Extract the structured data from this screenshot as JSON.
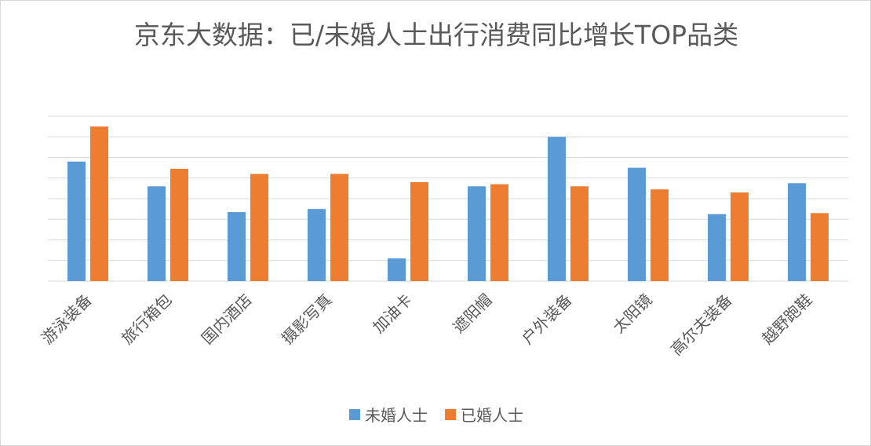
{
  "colors": {
    "unmarried": "#5B9BD5",
    "married": "#ED7D31",
    "grid": "#d9d9d9",
    "text": "#595959"
  },
  "chart_data": {
    "type": "bar",
    "title": "京东大数据：已/未婚人士出行消费同比增长TOP品类",
    "xlabel": "",
    "ylabel": "",
    "ylim": [
      0,
      8
    ],
    "y_tick_labels_shown": false,
    "grid": true,
    "legend_position": "bottom",
    "categories": [
      "游泳装备",
      "旅行箱包",
      "国内酒店",
      "摄影写真",
      "加油卡",
      "遮阳帽",
      "户外装备",
      "太阳镜",
      "高尔夫装备",
      "越野跑鞋"
    ],
    "series": [
      {
        "name": "未婚人士",
        "color": "#5B9BD5",
        "values": [
          5.8,
          4.6,
          3.35,
          3.5,
          1.1,
          4.6,
          7.0,
          5.5,
          3.25,
          4.75
        ]
      },
      {
        "name": "已婚人士",
        "color": "#ED7D31",
        "values": [
          7.5,
          5.45,
          5.2,
          5.2,
          4.8,
          4.7,
          4.6,
          4.45,
          4.3,
          3.3
        ]
      }
    ]
  }
}
